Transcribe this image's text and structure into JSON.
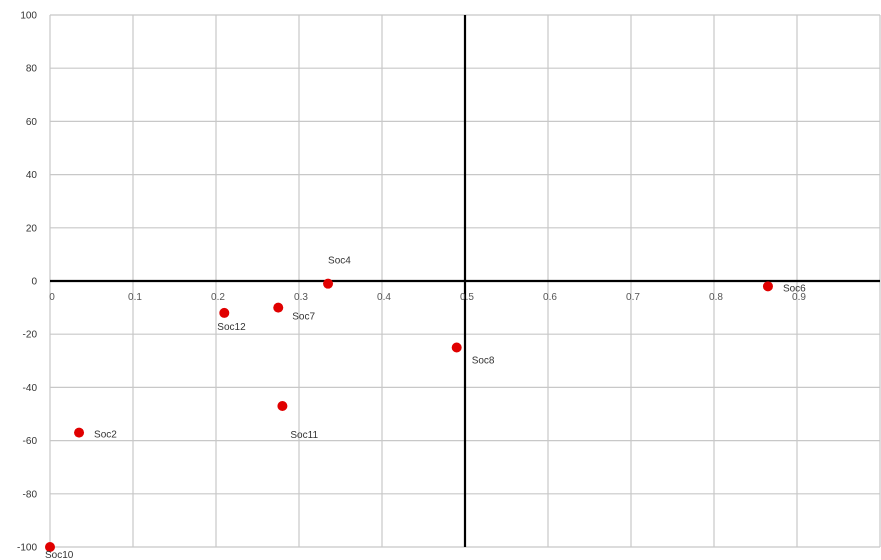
{
  "chart_data": {
    "type": "scatter",
    "title": "",
    "xlabel": "",
    "ylabel": "",
    "xlim": [
      0,
      1
    ],
    "ylim": [
      -100,
      100
    ],
    "x_ticks": [
      0,
      0.1,
      0.2,
      0.3,
      0.4,
      0.5,
      0.6,
      0.7,
      0.8,
      0.9
    ],
    "x_tick_labels": [
      "0",
      "0.1",
      "0.2",
      "0.3",
      "0.4",
      "0.5",
      "0.6",
      "0.7",
      "0.8",
      "0.9"
    ],
    "y_ticks": [
      100,
      80,
      60,
      40,
      20,
      0,
      -20,
      -40,
      -60,
      -80,
      -100
    ],
    "y_tick_labels": [
      "100",
      "80",
      "60",
      "40",
      "20",
      "0",
      "-20",
      "-40",
      "-60",
      "-80",
      "-100"
    ],
    "vertical_axis_at_x": 0.5,
    "horizontal_axis_at_y": 0,
    "grid": true,
    "marker_color": "#e00000",
    "points": [
      {
        "label": "Soc4",
        "x": 0.335,
        "y": -1
      },
      {
        "label": "Soc6",
        "x": 0.865,
        "y": -2
      },
      {
        "label": "Soc7",
        "x": 0.275,
        "y": -10
      },
      {
        "label": "Soc12",
        "x": 0.21,
        "y": -12
      },
      {
        "label": "Soc8",
        "x": 0.49,
        "y": -25
      },
      {
        "label": "Soc11",
        "x": 0.28,
        "y": -47
      },
      {
        "label": "Soc2",
        "x": 0.035,
        "y": -57
      },
      {
        "label": "Soc10",
        "x": 0.0,
        "y": -100
      }
    ]
  }
}
